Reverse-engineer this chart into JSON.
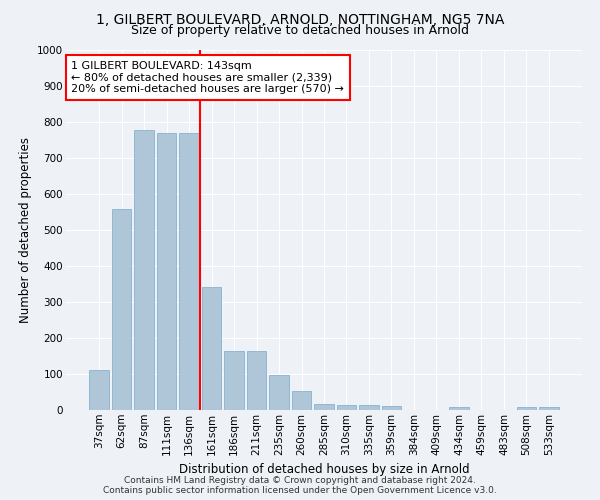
{
  "title1": "1, GILBERT BOULEVARD, ARNOLD, NOTTINGHAM, NG5 7NA",
  "title2": "Size of property relative to detached houses in Arnold",
  "xlabel": "Distribution of detached houses by size in Arnold",
  "ylabel": "Number of detached properties",
  "categories": [
    "37sqm",
    "62sqm",
    "87sqm",
    "111sqm",
    "136sqm",
    "161sqm",
    "186sqm",
    "211sqm",
    "235sqm",
    "260sqm",
    "285sqm",
    "310sqm",
    "335sqm",
    "359sqm",
    "384sqm",
    "409sqm",
    "434sqm",
    "459sqm",
    "483sqm",
    "508sqm",
    "533sqm"
  ],
  "values": [
    112,
    558,
    778,
    770,
    770,
    343,
    163,
    163,
    98,
    52,
    18,
    15,
    13,
    10,
    0,
    0,
    8,
    0,
    0,
    8,
    8
  ],
  "bar_color": "#aec6d8",
  "bar_edge_color": "#7aaacb",
  "vline_x": 4.5,
  "vline_color": "red",
  "annotation_text": "1 GILBERT BOULEVARD: 143sqm\n← 80% of detached houses are smaller (2,339)\n20% of semi-detached houses are larger (570) →",
  "annotation_box_color": "white",
  "annotation_box_edge": "red",
  "ylim": [
    0,
    1000
  ],
  "yticks": [
    0,
    100,
    200,
    300,
    400,
    500,
    600,
    700,
    800,
    900,
    1000
  ],
  "footer1": "Contains HM Land Registry data © Crown copyright and database right 2024.",
  "footer2": "Contains public sector information licensed under the Open Government Licence v3.0.",
  "background_color": "#eef2f7",
  "grid_color": "#ffffff",
  "title1_fontsize": 10,
  "title2_fontsize": 9,
  "axis_label_fontsize": 8.5,
  "tick_fontsize": 7.5,
  "annotation_fontsize": 8,
  "footer_fontsize": 6.5
}
